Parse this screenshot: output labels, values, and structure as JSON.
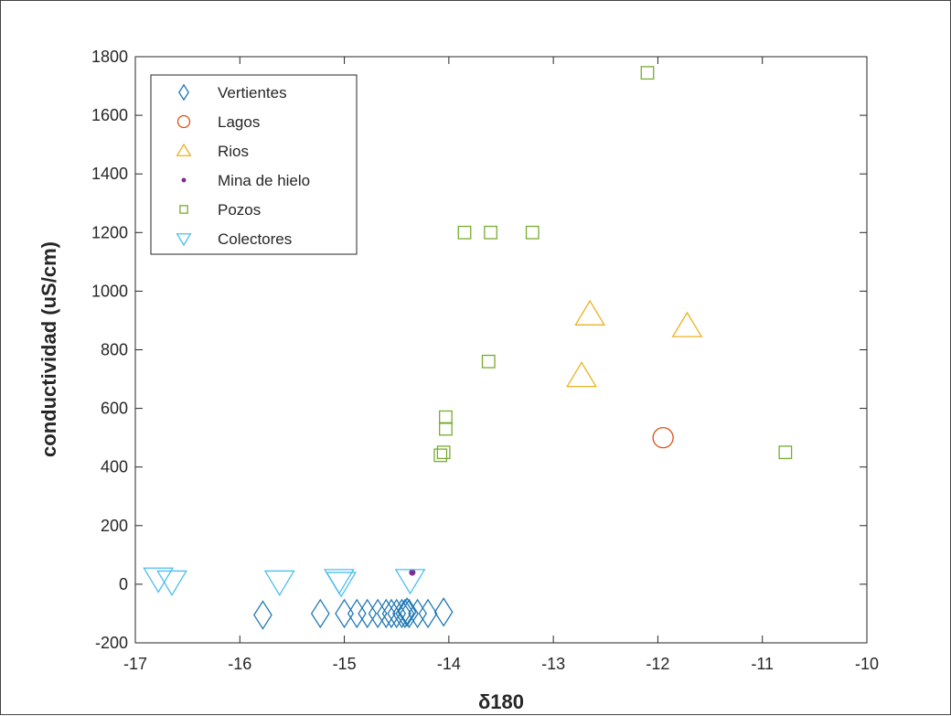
{
  "chart_data": {
    "type": "scatter",
    "xlabel": "δ180",
    "ylabel": "conductividad (uS/cm)",
    "xlim": [
      -17,
      -10
    ],
    "ylim": [
      -200,
      1800
    ],
    "xticks": [
      -17,
      -16,
      -15,
      -14,
      -13,
      -12,
      -11,
      -10
    ],
    "yticks": [
      -200,
      0,
      200,
      400,
      600,
      800,
      1000,
      1200,
      1400,
      1600,
      1800
    ],
    "grid": false,
    "legend_placement": "top-left",
    "series": [
      {
        "name": "Vertientes",
        "marker": "diamond",
        "color": "#1f77b4",
        "points": [
          [
            -15.78,
            -105
          ],
          [
            -15.23,
            -100
          ],
          [
            -15.0,
            -100
          ],
          [
            -14.88,
            -100
          ],
          [
            -14.78,
            -100
          ],
          [
            -14.68,
            -100
          ],
          [
            -14.6,
            -100
          ],
          [
            -14.55,
            -100
          ],
          [
            -14.5,
            -100
          ],
          [
            -14.45,
            -100
          ],
          [
            -14.42,
            -100
          ],
          [
            -14.4,
            -95
          ],
          [
            -14.38,
            -100
          ],
          [
            -14.3,
            -100
          ],
          [
            -14.2,
            -100
          ],
          [
            -14.05,
            -95
          ]
        ]
      },
      {
        "name": "Lagos",
        "marker": "circle",
        "color": "#d95319",
        "points": [
          [
            -11.95,
            500
          ]
        ]
      },
      {
        "name": "Rios",
        "marker": "triangle-up",
        "color": "#edb120",
        "points": [
          [
            -12.65,
            920
          ],
          [
            -12.73,
            710
          ],
          [
            -11.72,
            880
          ]
        ]
      },
      {
        "name": "Mina de hielo",
        "marker": "dot",
        "color": "#7e2f8e",
        "points": [
          [
            -14.35,
            40
          ]
        ]
      },
      {
        "name": "Pozos",
        "marker": "square",
        "color": "#77ac30",
        "points": [
          [
            -12.1,
            1745
          ],
          [
            -13.85,
            1200
          ],
          [
            -13.6,
            1200
          ],
          [
            -13.2,
            1200
          ],
          [
            -13.62,
            760
          ],
          [
            -14.03,
            570
          ],
          [
            -14.03,
            530
          ],
          [
            -14.05,
            450
          ],
          [
            -14.08,
            440
          ],
          [
            -10.78,
            450
          ]
        ]
      },
      {
        "name": "Colectores",
        "marker": "triangle-down",
        "color": "#4dbeee",
        "points": [
          [
            -16.78,
            20
          ],
          [
            -16.65,
            10
          ],
          [
            -15.62,
            10
          ],
          [
            -15.05,
            15
          ],
          [
            -15.03,
            5
          ],
          [
            -14.37,
            15
          ]
        ]
      }
    ]
  }
}
